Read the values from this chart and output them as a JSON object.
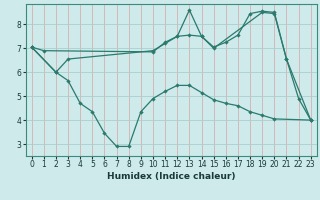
{
  "xlabel": "Humidex (Indice chaleur)",
  "bg_color": "#ceeaea",
  "grid_color": "#aacfcf",
  "line_color": "#2a7a6e",
  "xlim": [
    -0.5,
    23.5
  ],
  "ylim": [
    2.5,
    8.85
  ],
  "xticks": [
    0,
    1,
    2,
    3,
    4,
    5,
    6,
    7,
    8,
    9,
    10,
    11,
    12,
    13,
    14,
    15,
    16,
    17,
    18,
    19,
    20,
    21,
    22,
    23
  ],
  "yticks": [
    3,
    4,
    5,
    6,
    7,
    8
  ],
  "line1_x": [
    0,
    1,
    10,
    11,
    12,
    13,
    14,
    15,
    19,
    20,
    21,
    22,
    23
  ],
  "line1_y": [
    7.05,
    6.9,
    6.85,
    7.25,
    7.5,
    8.6,
    7.5,
    7.0,
    8.5,
    8.45,
    6.55,
    4.9,
    4.0
  ],
  "line2_x": [
    0,
    2,
    3,
    10,
    11,
    12,
    13,
    14,
    15,
    16,
    17,
    18,
    19,
    20,
    21,
    23
  ],
  "line2_y": [
    7.05,
    6.0,
    6.55,
    6.9,
    7.2,
    7.5,
    7.55,
    7.5,
    7.05,
    7.25,
    7.55,
    8.45,
    8.55,
    8.5,
    6.55,
    4.0
  ],
  "line3_x": [
    0,
    2,
    3,
    4,
    5,
    6,
    7,
    8,
    9,
    10,
    11,
    12,
    13,
    14,
    15,
    16,
    17,
    18,
    19,
    20,
    23
  ],
  "line3_y": [
    7.05,
    6.0,
    5.65,
    4.7,
    4.35,
    3.45,
    2.9,
    2.9,
    4.35,
    4.9,
    5.2,
    5.45,
    5.45,
    5.15,
    4.85,
    4.7,
    4.6,
    4.35,
    4.2,
    4.05,
    4.0
  ]
}
